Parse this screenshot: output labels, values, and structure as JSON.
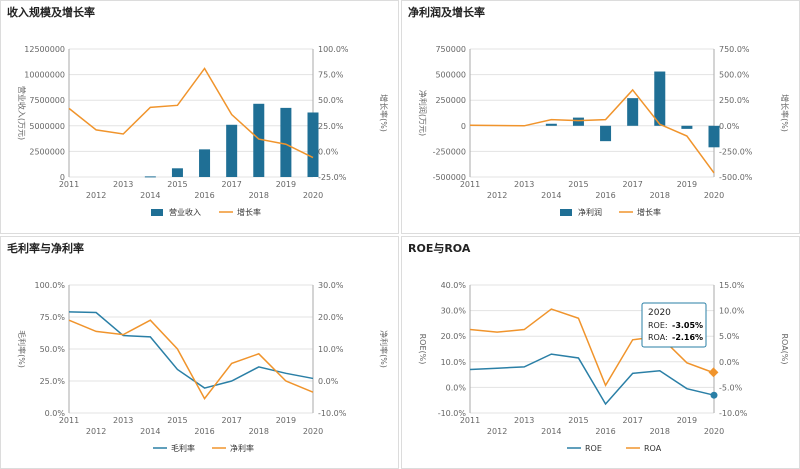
{
  "colors": {
    "bar": "#1f6f95",
    "line_orange": "#f0942c",
    "line_blue": "#2a7fa6",
    "grid": "#e3e3e3",
    "axis": "#aaaaaa"
  },
  "panels": [
    {
      "title": "收入规模及增长率"
    },
    {
      "title": "净利润及增长率"
    },
    {
      "title": "毛利率与净利率"
    },
    {
      "title": "ROE与ROA"
    }
  ],
  "chart_data": [
    {
      "type": "bar",
      "title": "收入规模及增长率",
      "categories": [
        "2011",
        "2012",
        "2013",
        "2014",
        "2015",
        "2016",
        "2017",
        "2018",
        "2019",
        "2020"
      ],
      "left_ylabel": "营业收入(万元)",
      "right_ylabel": "增长率(%)",
      "left_ylim": [
        0,
        12500000
      ],
      "left_ticks": [
        "12500000",
        "10000000",
        "7500000",
        "5000000",
        "2500000",
        "0"
      ],
      "right_ylim": [
        -25,
        100
      ],
      "right_ticks": [
        "100.0%",
        "75.0%",
        "50.0%",
        "25.0%",
        "0.0%",
        "-25.0%"
      ],
      "series": [
        {
          "name": "营业收入",
          "kind": "bar",
          "values": [
            0,
            0,
            0,
            60000,
            850000,
            2700000,
            5100000,
            7150000,
            6750000,
            6300000
          ]
        },
        {
          "name": "增长率",
          "kind": "line",
          "axis": "right",
          "values": [
            42,
            21,
            17,
            43,
            45,
            81,
            36,
            12,
            7,
            -6
          ]
        }
      ],
      "legend": "bottom"
    },
    {
      "type": "bar",
      "title": "净利润及增长率",
      "categories": [
        "2011",
        "2012",
        "2013",
        "2014",
        "2015",
        "2016",
        "2017",
        "2018",
        "2019",
        "2020"
      ],
      "left_ylabel": "净利润(万元)",
      "right_ylabel": "增长率(%)",
      "left_ylim": [
        -500000,
        750000
      ],
      "left_ticks": [
        "750000",
        "500000",
        "250000",
        "0",
        "-250000",
        "-500000"
      ],
      "right_ylim": [
        -500,
        750
      ],
      "right_ticks": [
        "750.0%",
        "500.0%",
        "250.0%",
        "0.0%",
        "-250.0%",
        "-500.0%"
      ],
      "series": [
        {
          "name": "净利润",
          "kind": "bar",
          "values": [
            0,
            0,
            0,
            20000,
            80000,
            -150000,
            270000,
            530000,
            -30000,
            -210000
          ]
        },
        {
          "name": "增长率",
          "kind": "line",
          "axis": "right",
          "values": [
            5,
            3,
            0,
            60,
            50,
            60,
            350,
            15,
            -100,
            -460
          ]
        }
      ],
      "legend": "bottom"
    },
    {
      "type": "line",
      "title": "毛利率与净利率",
      "categories": [
        "2011",
        "2012",
        "2013",
        "2014",
        "2015",
        "2016",
        "2017",
        "2018",
        "2019",
        "2020"
      ],
      "left_ylabel": "毛利率(%)",
      "right_ylabel": "净利率(%)",
      "left_ylim": [
        0,
        100
      ],
      "left_ticks": [
        "100.0%",
        "75.0%",
        "50.0%",
        "25.0%",
        "0.0%"
      ],
      "right_ylim": [
        -10,
        30
      ],
      "right_ticks": [
        "30.0%",
        "20.0%",
        "10.0%",
        "0.0%",
        "-10.0%"
      ],
      "series": [
        {
          "name": "毛利率",
          "axis": "left",
          "color": "blue",
          "values": [
            79,
            78.5,
            60.5,
            59.5,
            34,
            19.5,
            25,
            36,
            31,
            27
          ]
        },
        {
          "name": "净利率",
          "axis": "right",
          "color": "orange",
          "values": [
            19,
            15.5,
            14.5,
            19,
            10,
            -5.5,
            5.5,
            8.5,
            0,
            -3.5
          ]
        }
      ],
      "legend": "bottom"
    },
    {
      "type": "line",
      "title": "ROE与ROA",
      "categories": [
        "2011",
        "2012",
        "2013",
        "2014",
        "2015",
        "2016",
        "2017",
        "2018",
        "2019",
        "2020"
      ],
      "left_ylabel": "ROE(%)",
      "right_ylabel": "ROA(%)",
      "left_ylim": [
        -10,
        40
      ],
      "left_ticks": [
        "40.0%",
        "30.0%",
        "20.0%",
        "10.0%",
        "0.0%",
        "-10.0%"
      ],
      "right_ylim": [
        -10,
        15
      ],
      "right_ticks": [
        "15.0%",
        "10.0%",
        "5.0%",
        "0.0%",
        "-5.0%",
        "-10.0%"
      ],
      "series": [
        {
          "name": "ROE",
          "axis": "left",
          "color": "blue",
          "values": [
            7,
            7.5,
            8,
            13,
            11.5,
            -6.5,
            5.5,
            6.5,
            -0.5,
            -3.05
          ]
        },
        {
          "name": "ROA",
          "axis": "right",
          "color": "orange",
          "values": [
            6.3,
            5.8,
            6.3,
            10.3,
            8.5,
            -4.6,
            4.3,
            5,
            -0.2,
            -2.16
          ]
        }
      ],
      "tooltip": {
        "year": "2020",
        "roe_label": "ROE:",
        "roe_value": "-3.05%",
        "roa_label": "ROA:",
        "roa_value": "-2.16%"
      },
      "legend": "bottom"
    }
  ]
}
